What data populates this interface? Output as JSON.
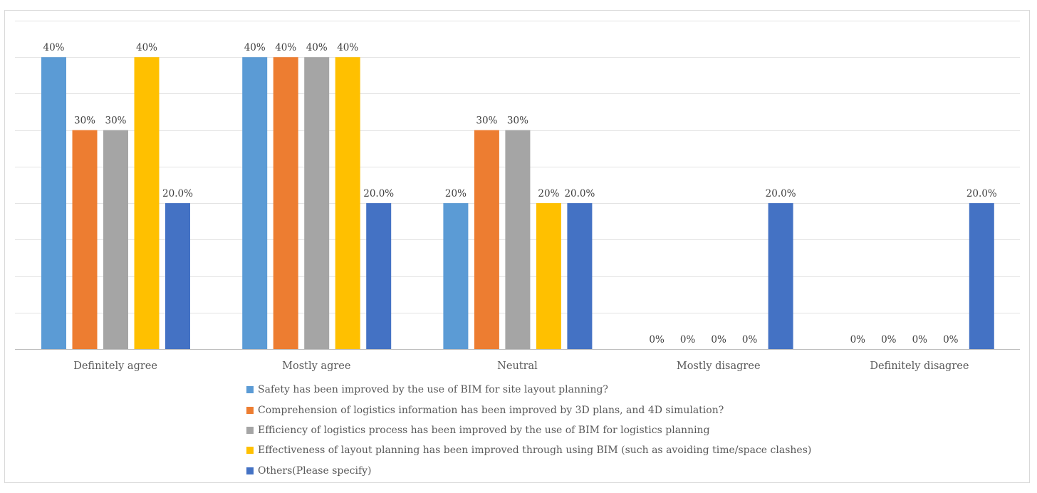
{
  "chart_data": {
    "type": "bar",
    "categories": [
      "Definitely agree",
      "Mostly agree",
      "Neutral",
      "Mostly disagree",
      "Definitely disagree"
    ],
    "ylim": [
      0,
      0.45
    ],
    "grid": true,
    "legend_position": "bottom",
    "series": [
      {
        "name": "Safety has been improved by the use of BIM for site layout planning?",
        "color": "#5b9bd5",
        "values": [
          0.4,
          0.4,
          0.2,
          0,
          0
        ],
        "labels": [
          "40%",
          "40%",
          "20%",
          "0%",
          "0%"
        ]
      },
      {
        "name": "Comprehension of logistics information has been improved by 3D plans, and 4D simulation?",
        "color": "#ed7d31",
        "values": [
          0.3,
          0.4,
          0.3,
          0,
          0
        ],
        "labels": [
          "30%",
          "40%",
          "30%",
          "0%",
          "0%"
        ]
      },
      {
        "name": "Efficiency of logistics process has been improved by the use of BIM for logistics planning",
        "color": "#a5a5a5",
        "values": [
          0.3,
          0.4,
          0.3,
          0,
          0
        ],
        "labels": [
          "30%",
          "40%",
          "30%",
          "0%",
          "0%"
        ]
      },
      {
        "name": "Effectiveness of layout planning has been improved through using BIM (such as avoiding time/space clashes)",
        "color": "#ffc000",
        "values": [
          0.4,
          0.4,
          0.2,
          0,
          0
        ],
        "labels": [
          "40%",
          "40%",
          "20%",
          "0%",
          "0%"
        ]
      },
      {
        "name": "Others(Please specify)",
        "color": "#4472c4",
        "values": [
          0.2,
          0.2,
          0.2,
          0.2,
          0.2
        ],
        "labels": [
          "20.0%",
          "20.0%",
          "20.0%",
          "20.0%",
          "20.0%"
        ]
      }
    ]
  }
}
